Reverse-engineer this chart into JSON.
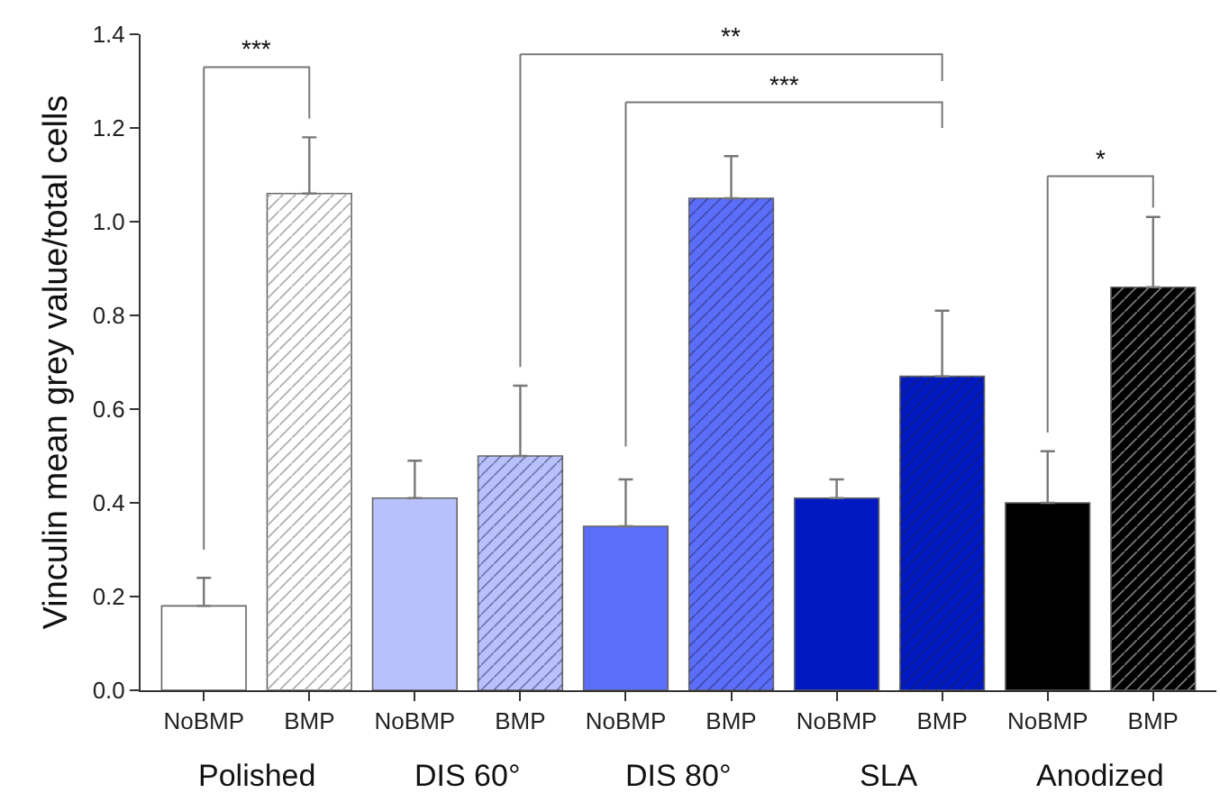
{
  "chart_data": {
    "type": "bar",
    "ylabel": "Vinculin mean grey value/total cells",
    "categories": [
      "NoBMP",
      "BMP",
      "NoBMP",
      "BMP",
      "NoBMP",
      "BMP",
      "NoBMP",
      "BMP",
      "NoBMP",
      "BMP"
    ],
    "values": [
      0.18,
      1.06,
      0.41,
      0.5,
      0.35,
      1.05,
      0.41,
      0.67,
      0.4,
      0.86
    ],
    "errors": [
      [
        0.18,
        0.24
      ],
      [
        1.06,
        1.18
      ],
      [
        0.41,
        0.49
      ],
      [
        0.5,
        0.65
      ],
      [
        0.35,
        0.45
      ],
      [
        1.05,
        1.14
      ],
      [
        0.41,
        0.45
      ],
      [
        0.67,
        0.81
      ],
      [
        0.4,
        0.51
      ],
      [
        0.86,
        1.01
      ]
    ],
    "colors": [
      "#ffffff",
      "#ffffff",
      "#b8c1fb",
      "#b8c1fb",
      "#5b6ef9",
      "#5b6ef9",
      "#0019c0",
      "#0019c0",
      "#000000",
      "#000000"
    ],
    "ylim": [
      0,
      1.4
    ],
    "yticks": [
      {
        "value": 0,
        "label": "0.0"
      },
      {
        "value": 0.2,
        "label": "0.2"
      },
      {
        "value": 0.4,
        "label": "0.4"
      },
      {
        "value": 0.6,
        "label": "0.6"
      },
      {
        "value": 0.8,
        "label": "0.8"
      },
      {
        "value": 1.0,
        "label": "1.0"
      },
      {
        "value": 1.2,
        "label": "1.2"
      },
      {
        "value": 1.4,
        "label": "1.4"
      }
    ],
    "annotations": [
      "Polished",
      "DIS 60°",
      "DIS 80°",
      "SLA",
      "Anodized",
      "***",
      "**",
      "***",
      "*"
    ]
  }
}
